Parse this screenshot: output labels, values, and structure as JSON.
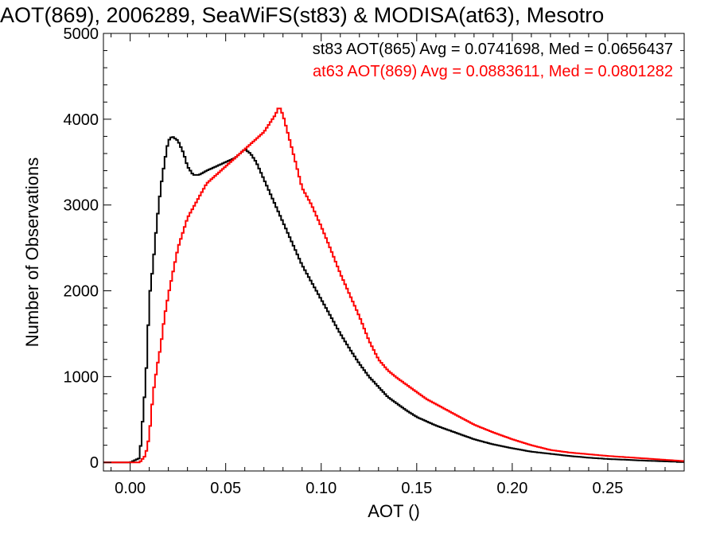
{
  "chart_data": {
    "type": "line",
    "title": "AOT(869), 2006289, SeaWiFS(st83) & MODISA(at63), Mesotro",
    "xlabel": "AOT ()",
    "ylabel": "Number of Observations",
    "xlim": [
      -0.014,
      0.29
    ],
    "ylim": [
      -100,
      5000
    ],
    "x_ticks": [
      0.0,
      0.05,
      0.1,
      0.15,
      0.2,
      0.25
    ],
    "x_tick_labels": [
      "0.00",
      "0.05",
      "0.10",
      "0.15",
      "0.20",
      "0.25"
    ],
    "y_ticks": [
      0,
      1000,
      2000,
      3000,
      4000,
      5000
    ],
    "y_tick_labels": [
      "0",
      "1000",
      "2000",
      "3000",
      "4000",
      "5000"
    ],
    "grid": false,
    "legend_position": "top-right",
    "annotations": [
      {
        "text": "st83 AOT(865) Avg = 0.0741698, Med = 0.0656437",
        "color": "#000000"
      },
      {
        "text": "at63 AOT(869) Avg = 0.0883611, Med = 0.0801282",
        "color": "#ff0000"
      }
    ],
    "series": [
      {
        "color": "#000000",
        "x": [
          -0.014,
          0.0,
          0.005,
          0.008,
          0.009,
          0.01,
          0.012,
          0.014,
          0.016,
          0.018,
          0.02,
          0.022,
          0.025,
          0.028,
          0.03,
          0.033,
          0.036,
          0.04,
          0.045,
          0.05,
          0.055,
          0.06,
          0.063,
          0.066,
          0.07,
          0.075,
          0.08,
          0.085,
          0.09,
          0.095,
          0.1,
          0.105,
          0.11,
          0.115,
          0.12,
          0.125,
          0.13,
          0.135,
          0.14,
          0.145,
          0.15,
          0.16,
          0.17,
          0.18,
          0.19,
          0.2,
          0.21,
          0.22,
          0.23,
          0.24,
          0.25,
          0.26,
          0.27,
          0.28,
          0.29
        ],
        "y": [
          0,
          0,
          50,
          900,
          1300,
          1900,
          2300,
          2800,
          3200,
          3500,
          3750,
          3800,
          3750,
          3600,
          3450,
          3350,
          3350,
          3400,
          3450,
          3500,
          3550,
          3650,
          3600,
          3500,
          3300,
          3050,
          2800,
          2550,
          2300,
          2100,
          1900,
          1700,
          1500,
          1320,
          1150,
          1000,
          880,
          760,
          680,
          600,
          530,
          430,
          350,
          270,
          210,
          165,
          125,
          100,
          75,
          55,
          40,
          30,
          20,
          12,
          5
        ]
      },
      {
        "color": "#ff0000",
        "x": [
          -0.014,
          0.005,
          0.008,
          0.01,
          0.012,
          0.014,
          0.016,
          0.018,
          0.02,
          0.025,
          0.03,
          0.035,
          0.04,
          0.045,
          0.05,
          0.055,
          0.06,
          0.065,
          0.07,
          0.073,
          0.076,
          0.078,
          0.08,
          0.083,
          0.086,
          0.09,
          0.095,
          0.1,
          0.105,
          0.11,
          0.115,
          0.12,
          0.125,
          0.13,
          0.135,
          0.14,
          0.145,
          0.15,
          0.155,
          0.16,
          0.165,
          0.17,
          0.175,
          0.18,
          0.19,
          0.2,
          0.21,
          0.22,
          0.23,
          0.24,
          0.25,
          0.26,
          0.27,
          0.28,
          0.29
        ],
        "y": [
          0,
          0,
          80,
          300,
          800,
          1100,
          1350,
          1700,
          1950,
          2500,
          2850,
          3050,
          3250,
          3350,
          3450,
          3550,
          3650,
          3750,
          3850,
          3950,
          4050,
          4150,
          4050,
          3800,
          3550,
          3200,
          3000,
          2750,
          2480,
          2200,
          1950,
          1700,
          1420,
          1200,
          1070,
          980,
          900,
          820,
          740,
          680,
          620,
          560,
          500,
          440,
          350,
          270,
          200,
          145,
          115,
          95,
          75,
          60,
          45,
          30,
          15
        ]
      }
    ]
  }
}
